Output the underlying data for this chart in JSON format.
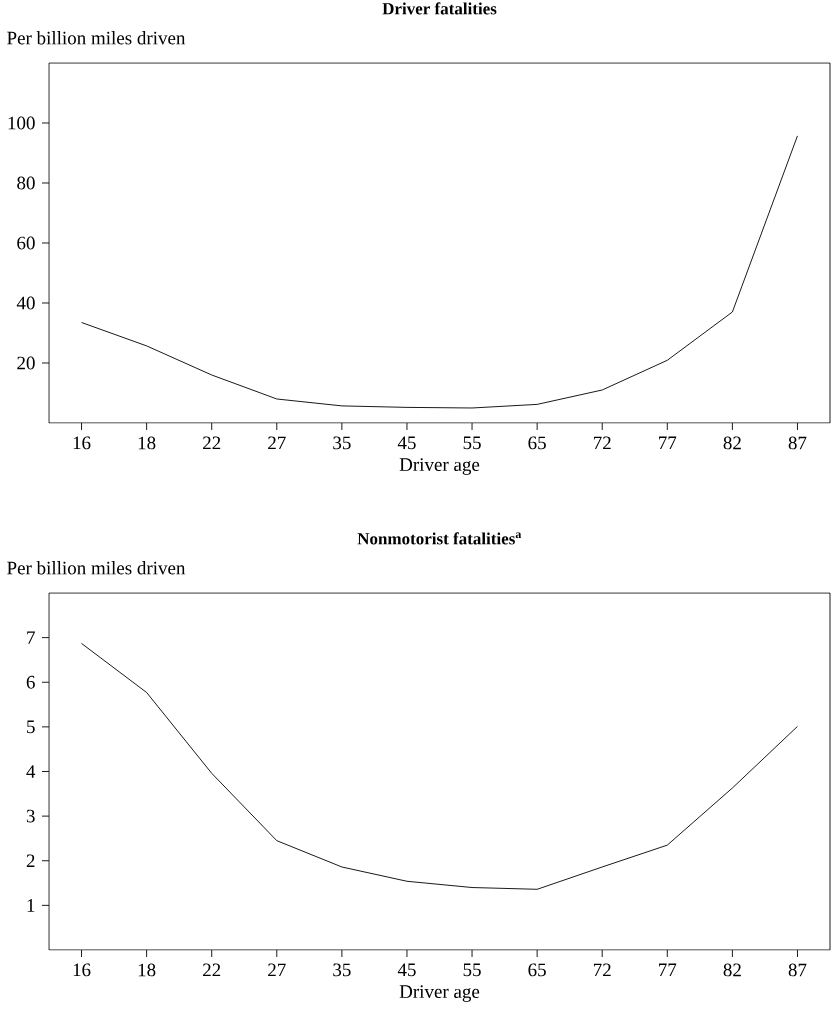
{
  "chart_data": [
    {
      "type": "line",
      "title": "Driver fatalities",
      "ylabel": "Per billion miles driven",
      "xlabel": "Driver age",
      "categories": [
        "16",
        "18",
        "22",
        "27",
        "35",
        "45",
        "55",
        "65",
        "72",
        "77",
        "82",
        "87"
      ],
      "series": [
        {
          "color": "#000000",
          "values": [
            33.5,
            25.7,
            16,
            8,
            5.7,
            5.2,
            5,
            6.2,
            11,
            20.9,
            37,
            95.7
          ]
        }
      ],
      "ylim": [
        0,
        120
      ],
      "yticks": [
        20,
        40,
        60,
        80,
        100
      ]
    },
    {
      "type": "line",
      "title": "Nonmotorist fatalities$^{a}$",
      "ylabel": "Per billion miles driven",
      "xlabel": "Driver age",
      "categories": [
        "16",
        "18",
        "22",
        "27",
        "35",
        "45",
        "55",
        "65",
        "72",
        "77",
        "82",
        "87"
      ],
      "series": [
        {
          "color": "#000000",
          "values": [
            6.87,
            5.77,
            3.96,
            2.45,
            1.86,
            1.54,
            1.4,
            1.36,
            1.86,
            2.35,
            3.63,
            5.01
          ]
        }
      ],
      "ylim": [
        0,
        8
      ],
      "yticks": [
        1,
        2,
        3,
        4,
        5,
        6,
        7
      ]
    }
  ]
}
